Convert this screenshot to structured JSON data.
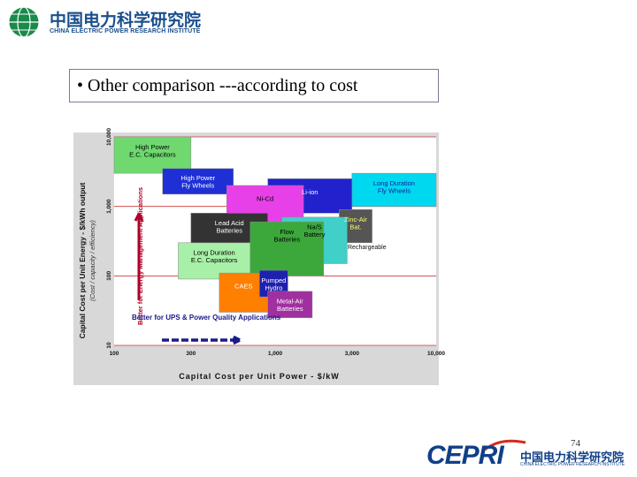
{
  "header": {
    "org_cn": "中国电力科学研究院",
    "org_en": "CHINA ELECTRIC POWER RESEARCH INSTITUTE"
  },
  "slide": {
    "title": "• Other comparison ---according to cost",
    "page_number": "74"
  },
  "footer": {
    "brand": "CEPRI",
    "org_cn": "中国电力科学研究院",
    "org_en": "CHINA ELECTRIC POWER RESEARCH INSTITUTE"
  },
  "colors": {
    "brand_blue": "#1a4f8c",
    "cepri_red": "#d42a1e"
  },
  "chart_data": {
    "type": "area",
    "xlabel": "Capital Cost per Unit Power - $/kW",
    "ylabel_main": "Capital Cost per Unit Energy - $/kWh output",
    "ylabel_sub": "(Cost / capacity / efficiency)",
    "x_scale": "log",
    "y_scale": "log",
    "xlim": [
      100,
      10000
    ],
    "ylim": [
      10,
      10000
    ],
    "x_ticks": [
      "100",
      "300",
      "1,000",
      "3,000",
      "10,000"
    ],
    "y_ticks": [
      "10",
      "100",
      "1,000",
      "10,000"
    ],
    "grid": "horizontal",
    "annotations": [
      {
        "text": "Better for Energy Management Applications",
        "color": "#b0002a"
      },
      {
        "text": "Better for UPS & Power Quality Applications",
        "color": "#1a1a8a"
      }
    ],
    "side_label": "Rechargeable",
    "regions": [
      {
        "name": "High Power E.C. Capacitors",
        "x": [
          100,
          300
        ],
        "y": [
          3000,
          10000
        ],
        "color": "#6fd86f",
        "label_color": "#000000"
      },
      {
        "name": "High Power Fly Wheels",
        "x": [
          200,
          550
        ],
        "y": [
          1500,
          3500
        ],
        "color": "#1e2fd6",
        "label_color": "#ffffff"
      },
      {
        "name": "Long Duration Fly Wheels",
        "x": [
          3000,
          10000
        ],
        "y": [
          1000,
          3000
        ],
        "color": "#00d8f0",
        "label_color": "#1a1aa0"
      },
      {
        "name": "Li-ion",
        "x": [
          900,
          3000
        ],
        "y": [
          800,
          2500
        ],
        "color": "#2222cc",
        "label_color": "#ffffff"
      },
      {
        "name": "Ni-Cd",
        "x": [
          500,
          1500
        ],
        "y": [
          400,
          2000
        ],
        "color": "#e840e8",
        "label_color": "#000000"
      },
      {
        "name": "Zinc-Air Bat.",
        "x": [
          2500,
          4000
        ],
        "y": [
          300,
          900
        ],
        "color": "#555555",
        "label_color": "#ffff66"
      },
      {
        "name": "Na/S Battery",
        "x": [
          1100,
          2800
        ],
        "y": [
          150,
          700
        ],
        "color": "#40d0c8",
        "label_color": "#000000"
      },
      {
        "name": "Lead Acid Batteries",
        "x": [
          300,
          900
        ],
        "y": [
          150,
          800
        ],
        "color": "#333333",
        "label_color": "#ffffff"
      },
      {
        "name": "Flow Batteries",
        "x": [
          700,
          2000
        ],
        "y": [
          100,
          600
        ],
        "color": "#3ca83c",
        "label_color": "#000000"
      },
      {
        "name": "Long Duration E.C. Capacitors",
        "x": [
          250,
          700
        ],
        "y": [
          90,
          300
        ],
        "color": "#a8f0a8",
        "label_color": "#000000"
      },
      {
        "name": "CAES",
        "x": [
          450,
          900
        ],
        "y": [
          30,
          110
        ],
        "color": "#ff7f00",
        "label_color": "#ffffff"
      },
      {
        "name": "Pumped Hydro",
        "x": [
          800,
          1200
        ],
        "y": [
          50,
          120
        ],
        "color": "#2020b0",
        "label_color": "#ffffff"
      },
      {
        "name": "Metal-Air Batteries",
        "x": [
          900,
          1700
        ],
        "y": [
          25,
          60
        ],
        "color": "#a030a0",
        "label_color": "#ffffff"
      }
    ]
  }
}
